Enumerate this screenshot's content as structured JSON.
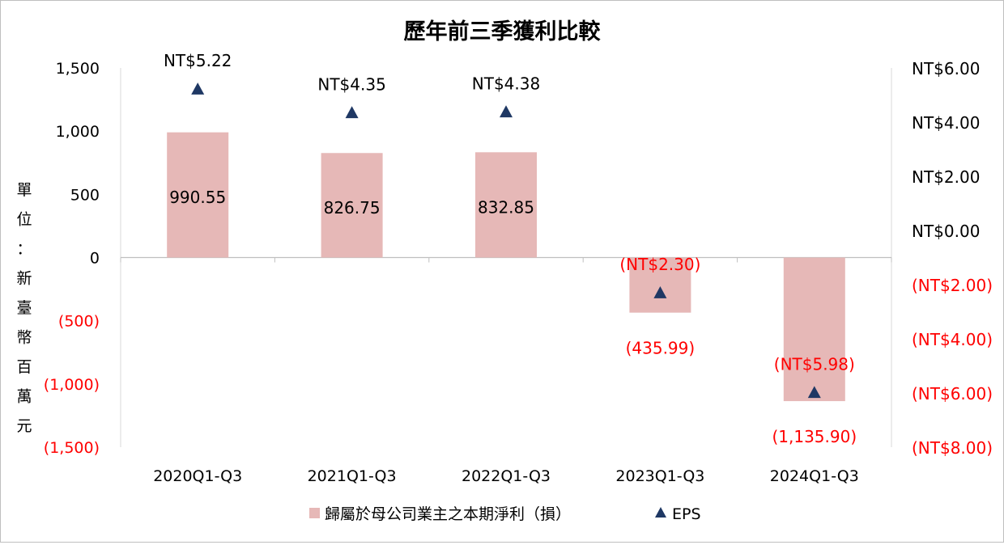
{
  "chart_data": {
    "type": "bar",
    "title": "歷年前三季獲利比較",
    "ylabel": "單位：新臺幣百萬元",
    "categories": [
      "2020Q1-Q3",
      "2021Q1-Q3",
      "2022Q1-Q3",
      "2023Q1-Q3",
      "2024Q1-Q3"
    ],
    "series": [
      {
        "name": "歸屬於母公司業主之本期淨利（損）",
        "type": "bar",
        "axis": "left",
        "values": [
          990.55,
          826.75,
          832.85,
          -435.99,
          -1135.9
        ],
        "labels": [
          "990.55",
          "826.75",
          "832.85",
          "(435.99)",
          "(1,135.90)"
        ],
        "color": "#e6b8b7"
      },
      {
        "name": "EPS",
        "type": "scatter",
        "marker": "triangle",
        "axis": "right",
        "values": [
          5.22,
          4.35,
          4.38,
          -2.3,
          -5.98
        ],
        "labels": [
          "NT$5.22",
          "NT$4.35",
          "NT$4.38",
          "(NT$2.30)",
          "(NT$5.98)"
        ],
        "color": "#1f3864"
      }
    ],
    "left_axis": {
      "ylim": [
        -1500,
        1500
      ],
      "ticks": [
        1500,
        1000,
        500,
        0,
        -500,
        -1000,
        -1500
      ],
      "tick_labels": [
        "1,500",
        "1,000",
        "500",
        "0",
        "(500)",
        "(1,000)",
        "(1,500)"
      ]
    },
    "right_axis": {
      "ylim": [
        -8,
        6
      ],
      "ticks": [
        6,
        4,
        2,
        0,
        -2,
        -4,
        -6,
        -8
      ],
      "tick_labels": [
        "NT$6.00",
        "NT$4.00",
        "NT$2.00",
        "NT$0.00",
        "(NT$2.00)",
        "(NT$4.00)",
        "(NT$6.00)",
        "(NT$8.00)"
      ]
    },
    "grid": false,
    "legend_position": "bottom",
    "colors": {
      "positive": "#000000",
      "negative": "#ff0000"
    }
  }
}
